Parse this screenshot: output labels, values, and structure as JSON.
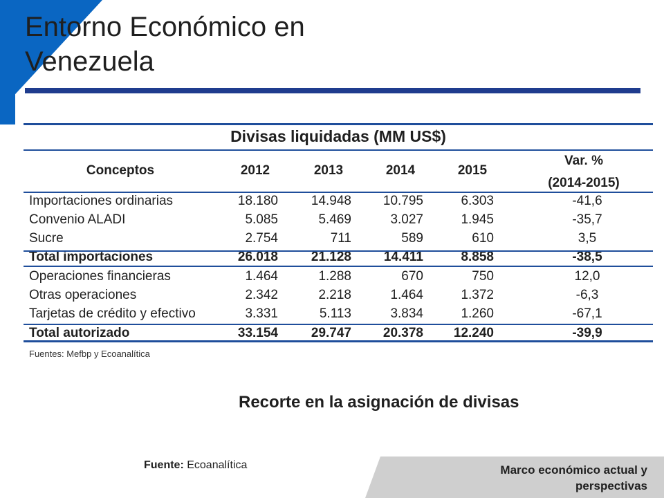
{
  "slide": {
    "title_line1": "Entorno Económico en",
    "title_line2": "Venezuela",
    "subtitle": "Recorte en la asignación de divisas",
    "source_label": "Fuente:",
    "source_value": "Ecoanalítica",
    "footer_line1": "Marco económico actual y",
    "footer_line2": "perspectivas"
  },
  "colors": {
    "accent_blue": "#1f4e9b",
    "side_blue": "#0a66c2",
    "footer_gray": "#cfcfcf"
  },
  "table": {
    "caption": "Divisas liquidadas (MM US$)",
    "headers": [
      "Conceptos",
      "2012",
      "2013",
      "2014",
      "2015",
      "Var. %",
      "(2014-2015)"
    ],
    "rows": [
      {
        "label": "Importaciones ordinarias",
        "v2012": "18.180",
        "v2013": "14.948",
        "v2014": "10.795",
        "v2015": "6.303",
        "var": "-41,6"
      },
      {
        "label": "Convenio ALADI",
        "v2012": "5.085",
        "v2013": "5.469",
        "v2014": "3.027",
        "v2015": "1.945",
        "var": "-35,7"
      },
      {
        "label": "Sucre",
        "v2012": "2.754",
        "v2013": "711",
        "v2014": "589",
        "v2015": "610",
        "var": "3,5"
      },
      {
        "label": "Total importaciones",
        "v2012": "26.018",
        "v2013": "21.128",
        "v2014": "14.411",
        "v2015": "8.858",
        "var": "-38,5"
      },
      {
        "label": "Operaciones financieras",
        "v2012": "1.464",
        "v2013": "1.288",
        "v2014": "670",
        "v2015": "750",
        "var": "12,0"
      },
      {
        "label": "Otras operaciones",
        "v2012": "2.342",
        "v2013": "2.218",
        "v2014": "1.464",
        "v2015": "1.372",
        "var": "-6,3"
      },
      {
        "label": "Tarjetas de crédito y efectivo",
        "v2012": "3.331",
        "v2013": "5.113",
        "v2014": "3.834",
        "v2015": "1.260",
        "var": "-67,1"
      },
      {
        "label": "Total autorizado",
        "v2012": "33.154",
        "v2013": "29.747",
        "v2014": "20.378",
        "v2015": "12.240",
        "var": "-39,9"
      }
    ],
    "source_note": "Fuentes: Mefbp y Ecoanalítica"
  }
}
